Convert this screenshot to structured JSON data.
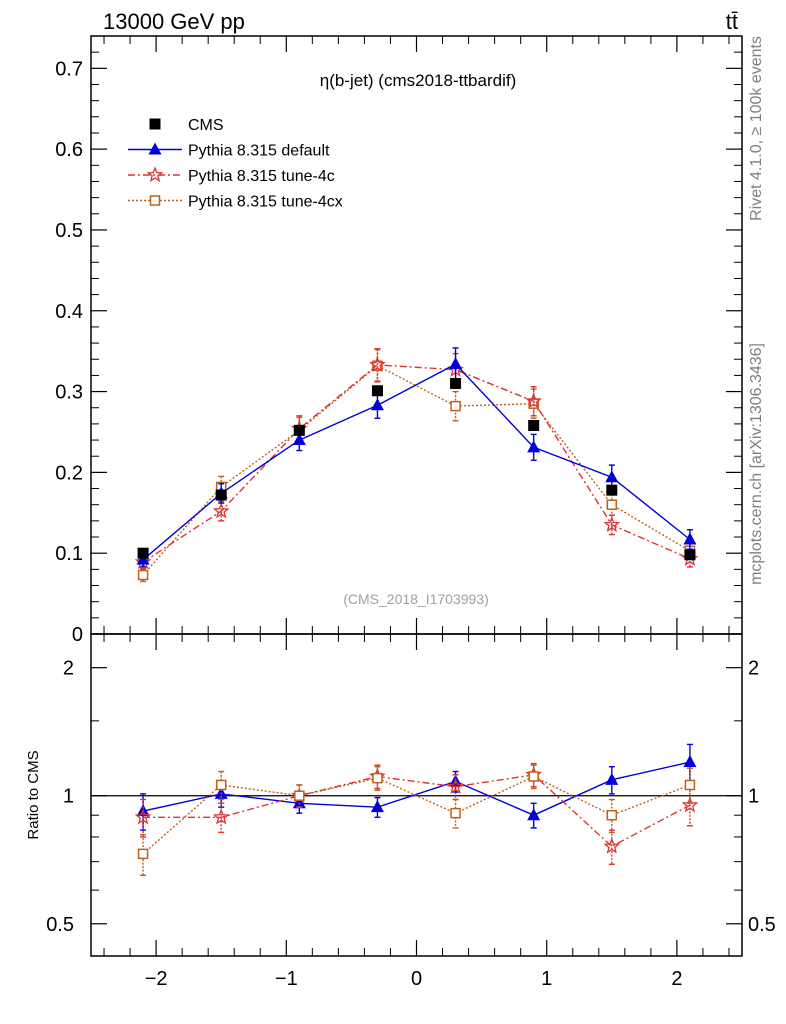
{
  "header": {
    "left": "13000 GeV pp",
    "right": "tt̄"
  },
  "side_texts": {
    "rivet": "Rivet 4.1.0, ≥ 100k events",
    "mcplots": "mcplots.cern.ch [arXiv:1306.3436]"
  },
  "chart_data": {
    "type": "line",
    "title": "η(b-jet) (cms2018-ttbardif)",
    "watermark": "(CMS_2018_I1703993)",
    "x": [
      -2.1,
      -1.5,
      -0.9,
      -0.3,
      0.3,
      0.9,
      1.5,
      2.1
    ],
    "main": {
      "ylim": [
        0,
        0.74
      ],
      "yticks": [
        0,
        0.1,
        0.2,
        0.3,
        0.4,
        0.5,
        0.6,
        0.7
      ],
      "ytick_labels": [
        "0",
        "0.1",
        "0.2",
        "0.3",
        "0.4",
        "0.5",
        "0.6",
        "0.7"
      ]
    },
    "ratio": {
      "ylabel": "Ratio to CMS",
      "ylim": [
        0.42,
        2.4
      ],
      "yticks": [
        0.5,
        1,
        2
      ],
      "ytick_labels": [
        "0.5",
        "1",
        "2"
      ],
      "right_tick_labels": [
        "0.5",
        "1",
        "2"
      ]
    },
    "xlim": [
      -2.5,
      2.5
    ],
    "xticks": [
      -2,
      -1,
      0,
      1,
      2
    ],
    "xtick_labels": [
      "−2",
      "−1",
      "0",
      "1",
      "2"
    ],
    "legend_position": "top-left",
    "series": [
      {
        "name": "CMS",
        "color": "#000000",
        "marker": "square",
        "line": "none",
        "values": [
          0.1,
          0.172,
          0.252,
          0.301,
          0.31,
          0.258,
          0.178,
          0.098
        ],
        "errors": [
          0.003,
          0.004,
          0.005,
          0.005,
          0.005,
          0.005,
          0.004,
          0.003
        ],
        "ratio": [
          1,
          1,
          1,
          1,
          1,
          1,
          1,
          1
        ],
        "ratio_errors": [
          0,
          0,
          0,
          0,
          0,
          0,
          0,
          0
        ]
      },
      {
        "name": "Pythia 8.315 default",
        "color": "#0000dd",
        "marker": "triangle",
        "line": "solid",
        "values": [
          0.092,
          0.174,
          0.24,
          0.283,
          0.334,
          0.231,
          0.194,
          0.117
        ],
        "errors": [
          0.009,
          0.012,
          0.013,
          0.016,
          0.02,
          0.016,
          0.015,
          0.012
        ],
        "ratio": [
          0.92,
          1.01,
          0.96,
          0.94,
          1.08,
          0.9,
          1.09,
          1.2
        ],
        "ratio_errors": [
          0.09,
          0.07,
          0.05,
          0.05,
          0.06,
          0.06,
          0.08,
          0.12
        ]
      },
      {
        "name": "Pythia 8.315 tune-4c",
        "color": "#dd3333",
        "marker": "star",
        "line": "dashdot",
        "values": [
          0.089,
          0.152,
          0.254,
          0.333,
          0.327,
          0.288,
          0.135,
          0.093
        ],
        "errors": [
          0.009,
          0.012,
          0.016,
          0.02,
          0.02,
          0.018,
          0.012,
          0.01
        ],
        "ratio": [
          0.89,
          0.89,
          1.0,
          1.11,
          1.05,
          1.12,
          0.76,
          0.95
        ],
        "ratio_errors": [
          0.09,
          0.07,
          0.06,
          0.07,
          0.07,
          0.07,
          0.07,
          0.1
        ]
      },
      {
        "name": "Pythia 8.315 tune-4cx",
        "color": "#c0601a",
        "marker": "open-square",
        "line": "dotted",
        "values": [
          0.073,
          0.182,
          0.252,
          0.332,
          0.282,
          0.285,
          0.16,
          0.103
        ],
        "errors": [
          0.008,
          0.013,
          0.016,
          0.02,
          0.018,
          0.018,
          0.013,
          0.01
        ],
        "ratio": [
          0.73,
          1.06,
          1.0,
          1.1,
          0.91,
          1.11,
          0.9,
          1.06
        ],
        "ratio_errors": [
          0.08,
          0.08,
          0.06,
          0.07,
          0.07,
          0.07,
          0.08,
          0.1
        ]
      }
    ]
  }
}
